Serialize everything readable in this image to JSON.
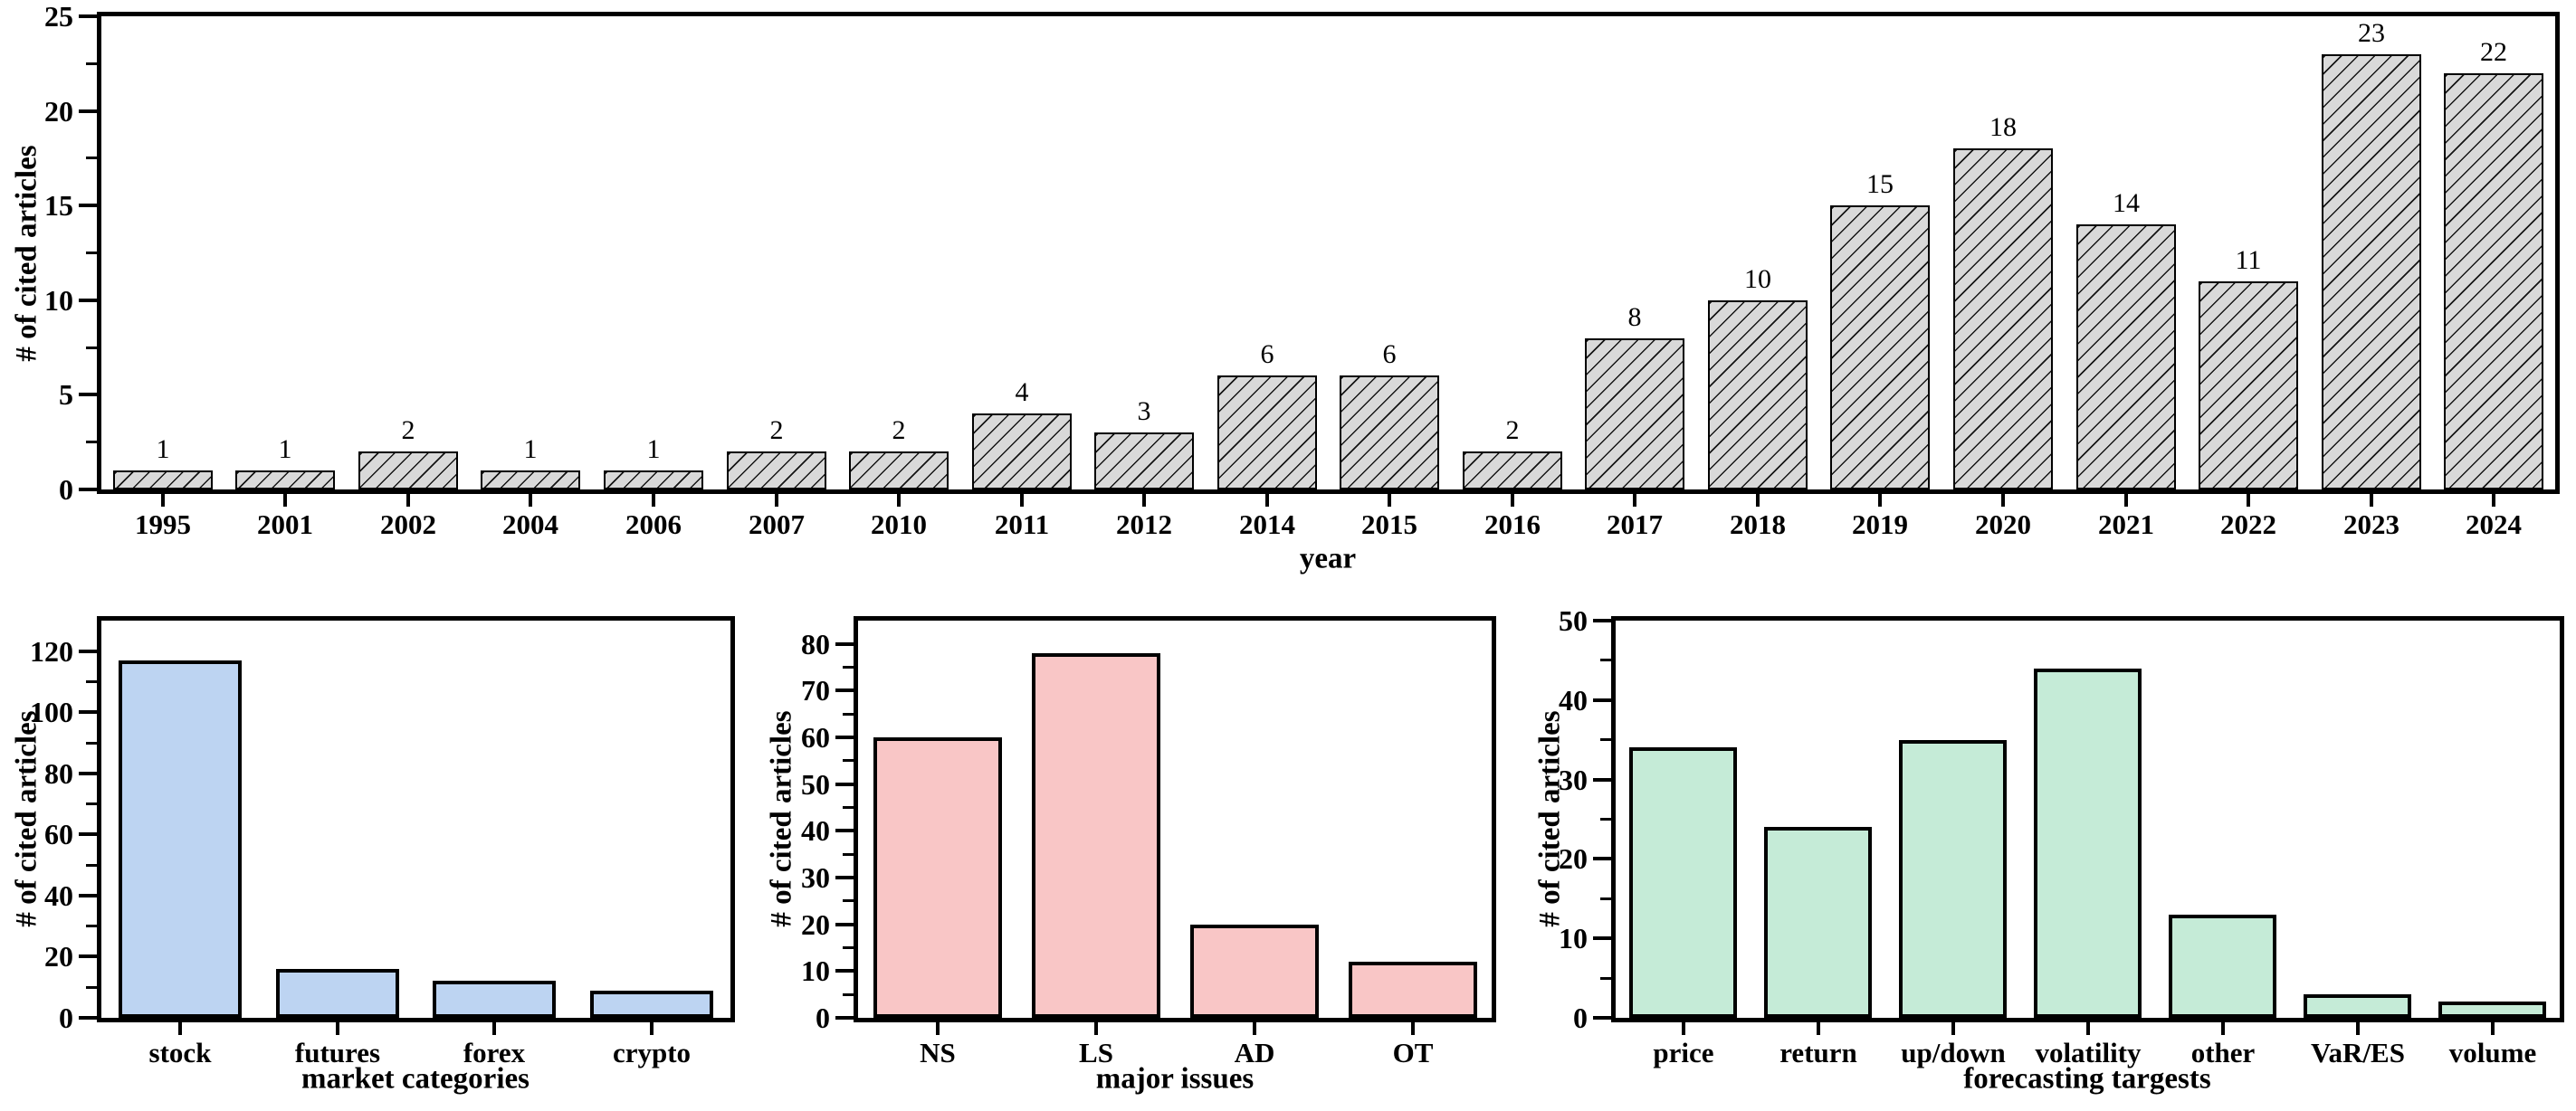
{
  "figure": {
    "description": "Four bar charts: cited articles per year, by market category, by major issue, and by forecasting target"
  },
  "chart_data": [
    {
      "type": "bar",
      "title": "",
      "xlabel": "year",
      "ylabel": "# of cited articles",
      "categories": [
        "1995",
        "2001",
        "2002",
        "2004",
        "2006",
        "2007",
        "2010",
        "2011",
        "2012",
        "2014",
        "2015",
        "2016",
        "2017",
        "2018",
        "2019",
        "2020",
        "2021",
        "2022",
        "2023",
        "2024"
      ],
      "values": [
        1,
        1,
        2,
        1,
        1,
        2,
        2,
        4,
        3,
        6,
        6,
        2,
        8,
        10,
        15,
        18,
        14,
        11,
        23,
        22
      ],
      "ylim": [
        0,
        25
      ],
      "yticks": [
        0,
        5,
        10,
        15,
        20,
        25
      ],
      "minor_step": 2.5,
      "grid": false,
      "show_values": true,
      "bar_color": "#D9D9D9",
      "hatch": "diagonal",
      "legend": "none"
    },
    {
      "type": "bar",
      "title": "",
      "xlabel": "market categories",
      "ylabel": "# of cited articles",
      "categories": [
        "stock",
        "futures",
        "forex",
        "crypto"
      ],
      "values": [
        117,
        16,
        12,
        9
      ],
      "ylim": [
        0,
        130
      ],
      "yticks": [
        0,
        20,
        40,
        60,
        80,
        100,
        120
      ],
      "minor_step": 10,
      "grid": false,
      "show_values": false,
      "bar_color": "#BDD4F2",
      "hatch": "none",
      "legend": "none"
    },
    {
      "type": "bar",
      "title": "",
      "xlabel": "major issues",
      "ylabel": "# of cited articles",
      "categories": [
        "NS",
        "LS",
        "AD",
        "OT"
      ],
      "values": [
        60,
        78,
        20,
        12
      ],
      "ylim": [
        0,
        85
      ],
      "yticks": [
        0,
        10,
        20,
        30,
        40,
        50,
        60,
        70,
        80
      ],
      "minor_step": 5,
      "grid": false,
      "show_values": false,
      "bar_color": "#F9C6C6",
      "hatch": "none",
      "legend": "none"
    },
    {
      "type": "bar",
      "title": "",
      "xlabel": "forecasting targests",
      "ylabel": "# of cited articles",
      "categories": [
        "price",
        "return",
        "up/down",
        "volatility",
        "other",
        "VaR/ES",
        "volume"
      ],
      "values": [
        34,
        24,
        35,
        44,
        13,
        3,
        2
      ],
      "ylim": [
        0,
        50
      ],
      "yticks": [
        0,
        10,
        20,
        30,
        40,
        50
      ],
      "minor_step": 5,
      "grid": false,
      "show_values": false,
      "bar_color": "#C5EBD7",
      "hatch": "none",
      "legend": "none"
    }
  ]
}
